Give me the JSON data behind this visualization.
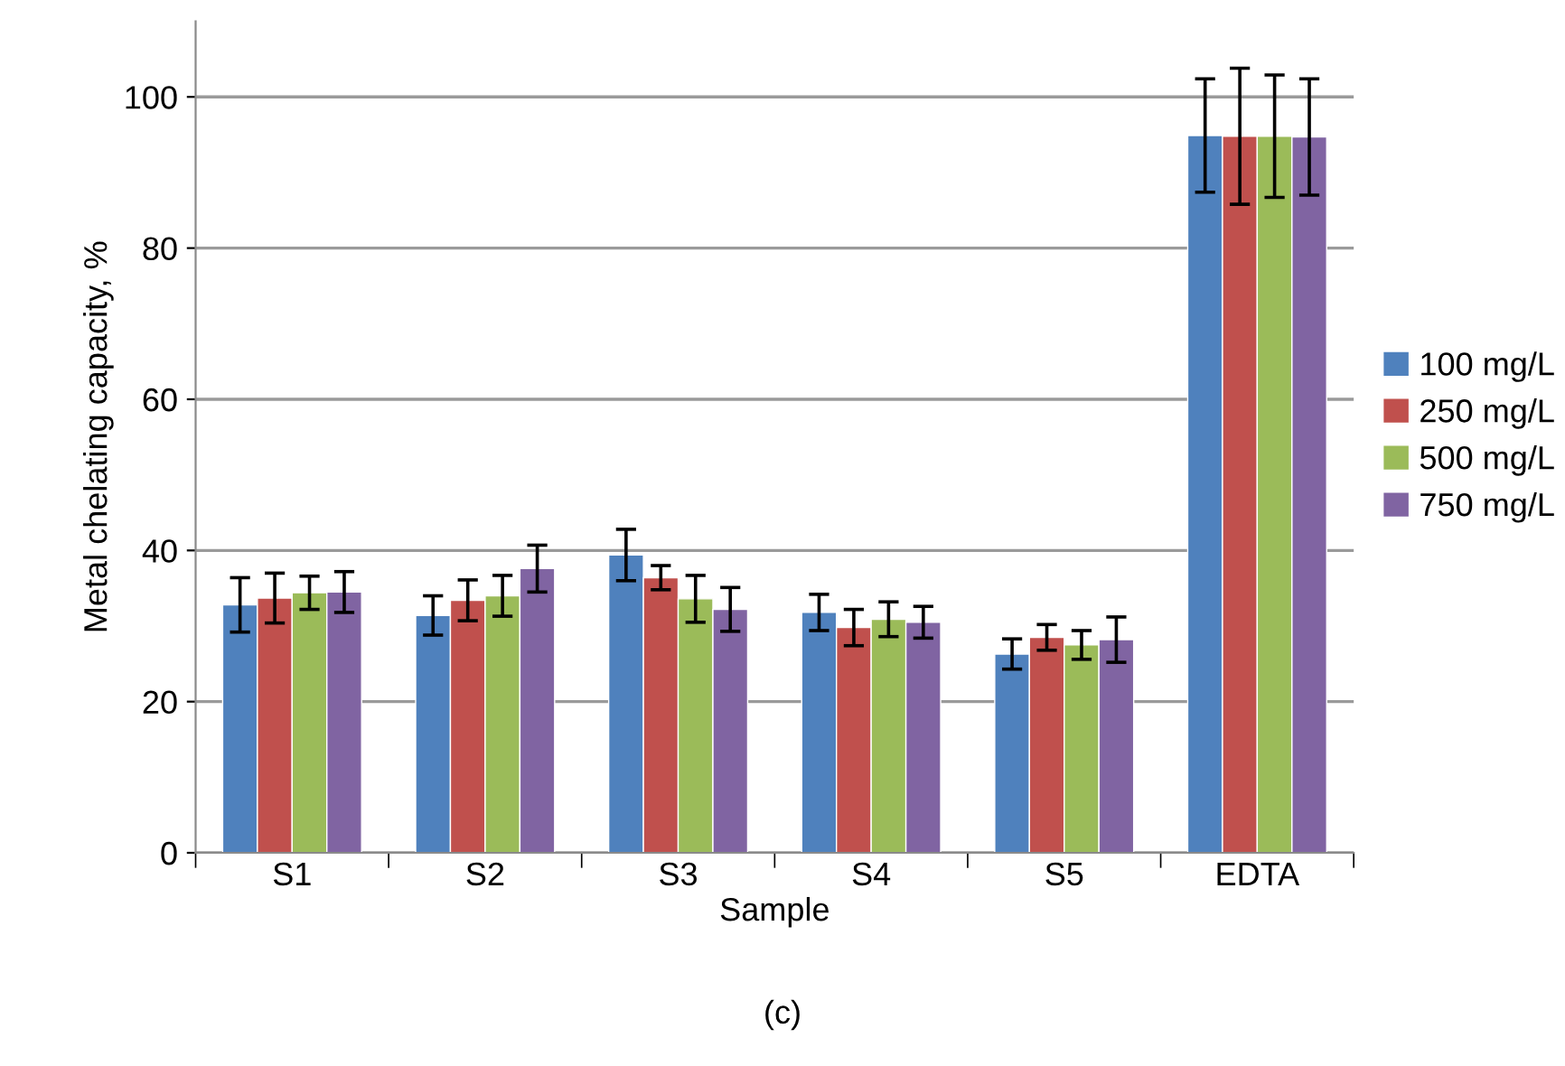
{
  "chart_data": {
    "type": "bar",
    "xlabel": "Sample",
    "ylabel": "Metal chelating capacity, %",
    "categories": [
      "S1",
      "S2",
      "S3",
      "S4",
      "S5",
      "EDTA"
    ],
    "series": [
      {
        "name": "100 mg/L",
        "color": "#4f81bd",
        "values": [
          32.8,
          31.4,
          39.4,
          31.8,
          26.3,
          94.9
        ],
        "errors": [
          3.6,
          2.6,
          3.4,
          2.4,
          2.0,
          7.5
        ]
      },
      {
        "name": "250 mg/L",
        "color": "#c0504d",
        "values": [
          33.7,
          33.4,
          36.4,
          29.8,
          28.5,
          94.8
        ],
        "errors": [
          3.3,
          2.7,
          1.6,
          2.4,
          1.7,
          9.0
        ]
      },
      {
        "name": "500 mg/L",
        "color": "#9bbb59",
        "values": [
          34.4,
          34.0,
          33.6,
          30.9,
          27.5,
          94.8
        ],
        "errors": [
          2.2,
          2.7,
          3.1,
          2.3,
          1.9,
          8.1
        ]
      },
      {
        "name": "750 mg/L",
        "color": "#8064a2",
        "values": [
          34.5,
          37.6,
          32.2,
          30.5,
          28.2,
          94.7
        ],
        "errors": [
          2.7,
          3.1,
          2.9,
          2.1,
          3.0,
          7.7
        ]
      }
    ],
    "ylim": [
      0,
      110
    ],
    "yticks": [
      0,
      20,
      40,
      60,
      80,
      100
    ],
    "grid": "y",
    "legend": "right",
    "annotations": [
      "(c)"
    ]
  }
}
